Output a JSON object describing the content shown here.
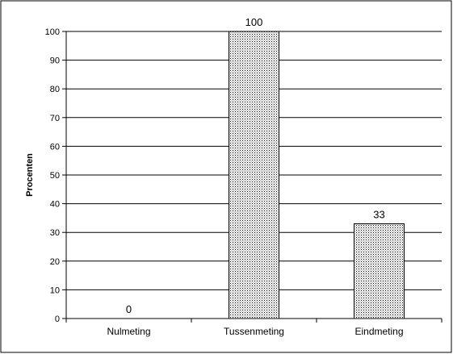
{
  "chart_data": {
    "type": "bar",
    "categories": [
      "Nulmeting",
      "Tussenmeting",
      "Eindmeting"
    ],
    "values": [
      0,
      100,
      33
    ],
    "data_labels": [
      "0",
      "100",
      "33"
    ],
    "title": "",
    "xlabel": "",
    "ylabel": "Procenten",
    "ylim": [
      0,
      100
    ],
    "yticks": [
      "0",
      "10",
      "20",
      "30",
      "40",
      "50",
      "60",
      "70",
      "80",
      "90",
      "100"
    ],
    "grid": true,
    "legend": "none",
    "bar_fill": "dotted",
    "colors": {
      "bar_base": "#ffffff",
      "bar_dots": "#000000",
      "grid": "#000000",
      "border": "#000000"
    }
  }
}
